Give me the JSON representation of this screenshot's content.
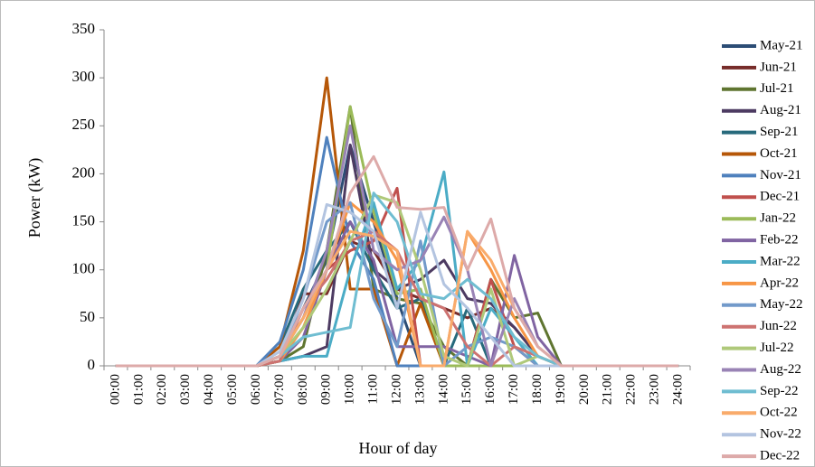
{
  "chart_data": {
    "type": "line",
    "x_label": "Hour of day",
    "y_label": "Power (kW)",
    "categories": [
      "00:00",
      "01:00",
      "02:00",
      "03:00",
      "04:00",
      "05:00",
      "06:00",
      "07:00",
      "08:00",
      "09:00",
      "10:00",
      "11:00",
      "12:00",
      "13:00",
      "14:00",
      "15:00",
      "16:00",
      "17:00",
      "18:00",
      "19:00",
      "20:00",
      "21:00",
      "22:00",
      "23:00",
      "24:00"
    ],
    "ylim": [
      0,
      350
    ],
    "yticks": [
      0,
      50,
      100,
      150,
      200,
      250,
      300,
      350
    ],
    "legend": "right",
    "series": [
      {
        "name": "May-21",
        "color": "#2C4D75",
        "values": [
          0,
          0,
          0,
          0,
          0,
          0,
          0,
          10,
          60,
          110,
          230,
          150,
          70,
          0,
          0,
          0,
          0,
          0,
          0,
          0,
          0,
          0,
          0,
          0,
          0
        ]
      },
      {
        "name": "Jun-21",
        "color": "#772C2A",
        "values": [
          0,
          0,
          0,
          0,
          0,
          0,
          0,
          5,
          75,
          75,
          130,
          120,
          80,
          70,
          60,
          50,
          60,
          40,
          10,
          0,
          0,
          0,
          0,
          0,
          0
        ]
      },
      {
        "name": "Jul-21",
        "color": "#5F7530",
        "values": [
          0,
          0,
          0,
          0,
          0,
          0,
          0,
          5,
          20,
          120,
          270,
          80,
          70,
          65,
          20,
          0,
          90,
          50,
          55,
          0,
          0,
          0,
          0,
          0,
          0
        ]
      },
      {
        "name": "Aug-21",
        "color": "#4D3B62",
        "values": [
          0,
          0,
          0,
          0,
          0,
          0,
          0,
          5,
          10,
          20,
          230,
          100,
          80,
          90,
          110,
          70,
          65,
          40,
          10,
          0,
          0,
          0,
          0,
          0,
          0
        ]
      },
      {
        "name": "Sep-21",
        "color": "#276A7C",
        "values": [
          0,
          0,
          0,
          0,
          0,
          0,
          0,
          20,
          80,
          120,
          150,
          100,
          60,
          70,
          0,
          60,
          0,
          0,
          0,
          0,
          0,
          0,
          0,
          0,
          0
        ]
      },
      {
        "name": "Oct-21",
        "color": "#B65708",
        "values": [
          0,
          0,
          0,
          0,
          0,
          0,
          0,
          20,
          120,
          300,
          80,
          80,
          0,
          65,
          0,
          0,
          0,
          0,
          0,
          0,
          0,
          0,
          0,
          0,
          0
        ]
      },
      {
        "name": "Nov-21",
        "color": "#4F81BD",
        "values": [
          0,
          0,
          0,
          0,
          0,
          0,
          0,
          25,
          100,
          238,
          130,
          90,
          0,
          0,
          0,
          0,
          0,
          0,
          0,
          0,
          0,
          0,
          0,
          0,
          0
        ]
      },
      {
        "name": "Dec-21",
        "color": "#C0504D",
        "values": [
          0,
          0,
          0,
          0,
          0,
          0,
          0,
          10,
          50,
          100,
          120,
          130,
          185,
          0,
          0,
          0,
          90,
          20,
          0,
          0,
          0,
          0,
          0,
          0,
          0
        ]
      },
      {
        "name": "Jan-22",
        "color": "#9BBB59",
        "values": [
          0,
          0,
          0,
          0,
          0,
          0,
          0,
          10,
          50,
          100,
          270,
          160,
          75,
          80,
          0,
          0,
          0,
          0,
          0,
          0,
          0,
          0,
          0,
          0,
          0
        ]
      },
      {
        "name": "Feb-22",
        "color": "#8064A2",
        "values": [
          0,
          0,
          0,
          0,
          0,
          0,
          0,
          5,
          30,
          100,
          150,
          110,
          20,
          20,
          20,
          10,
          0,
          115,
          30,
          0,
          0,
          0,
          0,
          0,
          0
        ]
      },
      {
        "name": "Mar-22",
        "color": "#4BACC6",
        "values": [
          0,
          0,
          0,
          0,
          0,
          0,
          0,
          5,
          10,
          10,
          100,
          170,
          80,
          110,
          202,
          0,
          60,
          30,
          0,
          0,
          0,
          0,
          0,
          0,
          0
        ]
      },
      {
        "name": "Apr-22",
        "color": "#F79646",
        "values": [
          0,
          0,
          0,
          0,
          0,
          0,
          0,
          5,
          40,
          100,
          170,
          150,
          110,
          0,
          0,
          140,
          100,
          50,
          10,
          0,
          0,
          0,
          0,
          0,
          0
        ]
      },
      {
        "name": "May-22",
        "color": "#729ACA",
        "values": [
          0,
          0,
          0,
          0,
          0,
          0,
          0,
          10,
          70,
          150,
          170,
          70,
          20,
          130,
          0,
          20,
          30,
          20,
          0,
          0,
          0,
          0,
          0,
          0,
          0
        ]
      },
      {
        "name": "Jun-22",
        "color": "#CD7371",
        "values": [
          0,
          0,
          0,
          0,
          0,
          0,
          0,
          5,
          60,
          90,
          130,
          140,
          120,
          70,
          60,
          20,
          0,
          20,
          10,
          0,
          0,
          0,
          0,
          0,
          0
        ]
      },
      {
        "name": "Jul-22",
        "color": "#AFC97A",
        "values": [
          0,
          0,
          0,
          0,
          0,
          0,
          0,
          10,
          40,
          80,
          130,
          178,
          170,
          100,
          10,
          0,
          80,
          0,
          10,
          0,
          0,
          0,
          0,
          0,
          0
        ]
      },
      {
        "name": "Aug-22",
        "color": "#9983B5",
        "values": [
          0,
          0,
          0,
          0,
          0,
          0,
          0,
          10,
          50,
          120,
          250,
          120,
          100,
          110,
          155,
          100,
          0,
          70,
          20,
          0,
          0,
          0,
          0,
          0,
          0
        ]
      },
      {
        "name": "Sep-22",
        "color": "#6FBDD1",
        "values": [
          0,
          0,
          0,
          0,
          0,
          0,
          0,
          10,
          30,
          35,
          40,
          180,
          150,
          75,
          70,
          90,
          70,
          30,
          10,
          0,
          0,
          0,
          0,
          0,
          0
        ]
      },
      {
        "name": "Oct-22",
        "color": "#F9AB6B",
        "values": [
          0,
          0,
          0,
          0,
          0,
          0,
          0,
          10,
          50,
          100,
          140,
          135,
          120,
          0,
          0,
          140,
          110,
          60,
          20,
          0,
          0,
          0,
          0,
          0,
          0
        ]
      },
      {
        "name": "Nov-22",
        "color": "#B3C4E0",
        "values": [
          0,
          0,
          0,
          0,
          0,
          0,
          0,
          15,
          70,
          168,
          160,
          140,
          60,
          160,
          85,
          60,
          30,
          0,
          0,
          0,
          0,
          0,
          0,
          0,
          0
        ]
      },
      {
        "name": "Dec-22",
        "color": "#DDAAA9",
        "values": [
          0,
          0,
          0,
          0,
          0,
          0,
          0,
          10,
          60,
          100,
          180,
          218,
          165,
          163,
          165,
          100,
          153,
          60,
          20,
          0,
          0,
          0,
          0,
          0,
          0
        ]
      }
    ]
  }
}
